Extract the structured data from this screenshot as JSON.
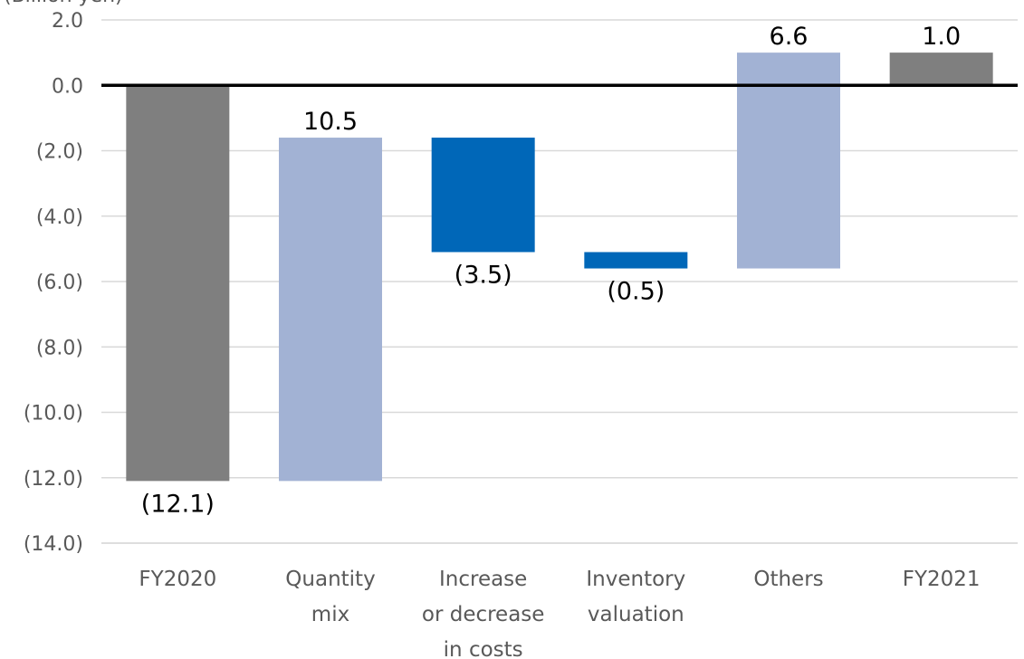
{
  "chart_data": {
    "type": "bar",
    "subtype": "waterfall",
    "unit_label": "(Billion yen)",
    "categories": [
      [
        "FY2020"
      ],
      [
        "Quantity",
        "mix"
      ],
      [
        "Increase",
        "or decrease",
        "in costs"
      ],
      [
        "Inventory",
        "valuation"
      ],
      [
        "Others"
      ],
      [
        "FY2021"
      ]
    ],
    "bars": [
      {
        "kind": "total",
        "start": 0,
        "end": -12.1,
        "label": "(12.1)",
        "label_position": "below"
      },
      {
        "kind": "increase",
        "start": -12.1,
        "end": -1.6,
        "label": "10.5",
        "label_position": "above"
      },
      {
        "kind": "decrease",
        "start": -1.6,
        "end": -5.1,
        "label": "(3.5)",
        "label_position": "below"
      },
      {
        "kind": "decrease",
        "start": -5.1,
        "end": -5.6,
        "label": "(0.5)",
        "label_position": "below"
      },
      {
        "kind": "increase",
        "start": -5.6,
        "end": 1.0,
        "label": "6.6",
        "label_position": "above"
      },
      {
        "kind": "total",
        "start": 0,
        "end": 1.0,
        "label": "1.0",
        "label_position": "above"
      }
    ],
    "y_ticks": [
      {
        "value": 2,
        "label": "2.0"
      },
      {
        "value": 0,
        "label": "0.0"
      },
      {
        "value": -2,
        "label": "(2.0)"
      },
      {
        "value": -4,
        "label": "(4.0)"
      },
      {
        "value": -6,
        "label": "(6.0)"
      },
      {
        "value": -8,
        "label": "(8.0)"
      },
      {
        "value": -10,
        "label": "(10.0)"
      },
      {
        "value": -12,
        "label": "(12.0)"
      },
      {
        "value": -14,
        "label": "(14.0)"
      }
    ],
    "ylim": [
      -14,
      2
    ],
    "grid": true,
    "legend": "none",
    "colors": {
      "total": "#7f7f7f",
      "increase": "#a2b2d4",
      "decrease": "#0067b8",
      "grid": "#d9d9d9",
      "zero_line": "#000000"
    }
  }
}
